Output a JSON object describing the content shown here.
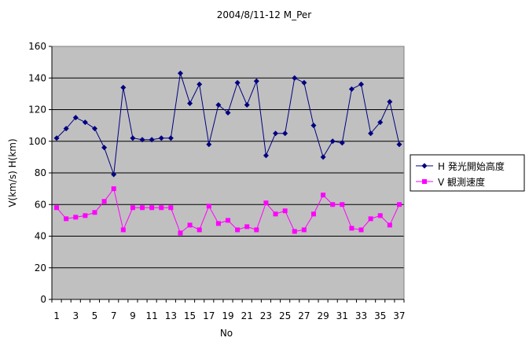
{
  "chart_data": {
    "type": "line",
    "title": "2004/8/11-12 M_Per",
    "xlabel": "No",
    "ylabel": "V(km/s) H(km)",
    "x": [
      1,
      2,
      3,
      4,
      5,
      6,
      7,
      8,
      9,
      10,
      11,
      12,
      13,
      14,
      15,
      16,
      17,
      18,
      19,
      20,
      21,
      22,
      23,
      24,
      25,
      26,
      27,
      28,
      29,
      30,
      31,
      32,
      33,
      34,
      35,
      36,
      37
    ],
    "x_tick_labels": [
      "1",
      "3",
      "5",
      "7",
      "9",
      "11",
      "13",
      "15",
      "17",
      "19",
      "21",
      "23",
      "25",
      "27",
      "29",
      "31",
      "33",
      "35",
      "37"
    ],
    "ylim": [
      0,
      160
    ],
    "y_ticks": [
      0,
      20,
      40,
      60,
      80,
      100,
      120,
      140,
      160
    ],
    "grid": "horizontal",
    "legend_position": "right",
    "series": [
      {
        "name": "H 発光開始高度",
        "color": "#000080",
        "marker": "diamond",
        "values": [
          102,
          108,
          115,
          112,
          108,
          96,
          79,
          134,
          102,
          101,
          101,
          102,
          102,
          143,
          124,
          136,
          98,
          123,
          118,
          137,
          123,
          138,
          91,
          105,
          105,
          140,
          137,
          110,
          90,
          100,
          99,
          133,
          136,
          105,
          112,
          125,
          98
        ]
      },
      {
        "name": "V 観測速度",
        "color": "#ff00ff",
        "marker": "square",
        "values": [
          58,
          51,
          52,
          53,
          55,
          62,
          70,
          44,
          58,
          58,
          58,
          58,
          58,
          42,
          47,
          44,
          59,
          48,
          50,
          44,
          46,
          44,
          61,
          54,
          56,
          43,
          44,
          54,
          66,
          60,
          60,
          45,
          44,
          51,
          53,
          47,
          60
        ]
      }
    ],
    "colors": {
      "plot_background": "#c0c0c0",
      "gridline": "#000000"
    }
  }
}
